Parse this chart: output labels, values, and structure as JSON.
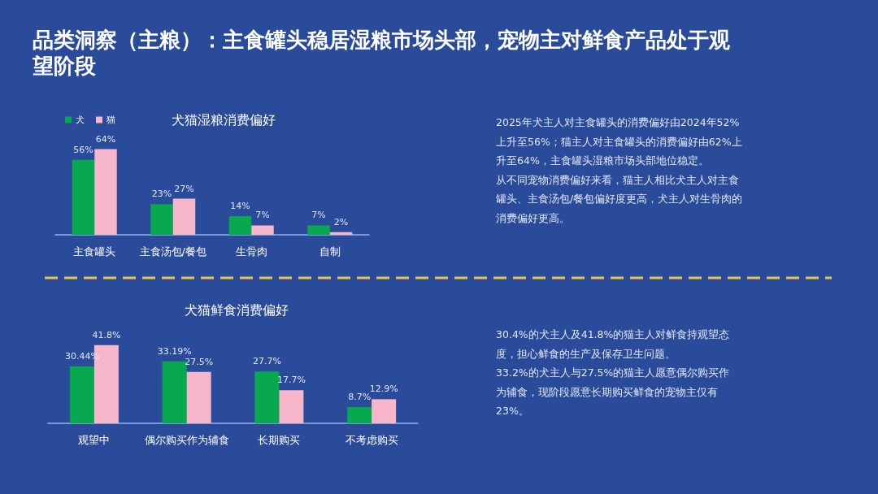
{
  "chart_data": [
    {
      "type": "bar",
      "title": "品类洞察（主粮）：主食罐头稳居湿粮市场头部，宠物主对鲜食产品处于观望阶段",
      "subtitle": "犬猫湿粮消费偏好",
      "categories": [
        "主食罐头",
        "主食汤包/餐包",
        "生骨肉",
        "自制"
      ],
      "series": [
        {
          "name": "犬",
          "color": "#08a84e",
          "values": [
            56,
            23,
            14,
            7
          ],
          "value_labels": [
            "56%",
            "23%",
            "14%",
            "7%"
          ]
        },
        {
          "name": "猫",
          "color": "#f7b6ca",
          "values": [
            64,
            27,
            7,
            2
          ],
          "value_labels": [
            "64%",
            "27%",
            "7%",
            "2%"
          ]
        }
      ],
      "legend": "top left",
      "annotations": [
        "2025年犬主人对主食罐头的消费偏好由2024年52%上升至56%；猫主人对主食罐头的消费偏好由62%上升至64%，主食罐头湿粮市场头部地位稳定。",
        "从不同宠物消费偏好来看，猫主人相比犬主人对主食罐头、主食汤包/餐包偏好度更高，犬主人对生骨肉的消费偏好更高。"
      ]
    },
    {
      "type": "bar",
      "title": "犬猫鲜食消费偏好",
      "categories": [
        "观望中",
        "偶尔购买作为辅食",
        "长期购买",
        "不考虑购买"
      ],
      "series": [
        {
          "color": "#08a84e",
          "values": [
            30.44,
            33.19,
            27.7,
            8.7
          ],
          "value_labels": [
            "30.44%",
            "33.19%",
            "27.7%",
            "8.7%"
          ]
        },
        {
          "color": "#f7b6ca",
          "values": [
            41.8,
            27.5,
            17.7,
            12.9
          ],
          "value_labels": [
            "41.8%",
            "27.5%",
            "17.7%",
            "12.9%"
          ]
        }
      ],
      "annotations": [
        "30.4%的犬主人及41.8%的猫主人对鲜食持观望态度，担心鲜食的生产及保存卫生问题。",
        "33.2%的犬主人与27.5%的猫主人愿意偶尔购买作为辅食，现阶段愿意长期购买鲜食的宠物主仅有23%。"
      ]
    }
  ]
}
